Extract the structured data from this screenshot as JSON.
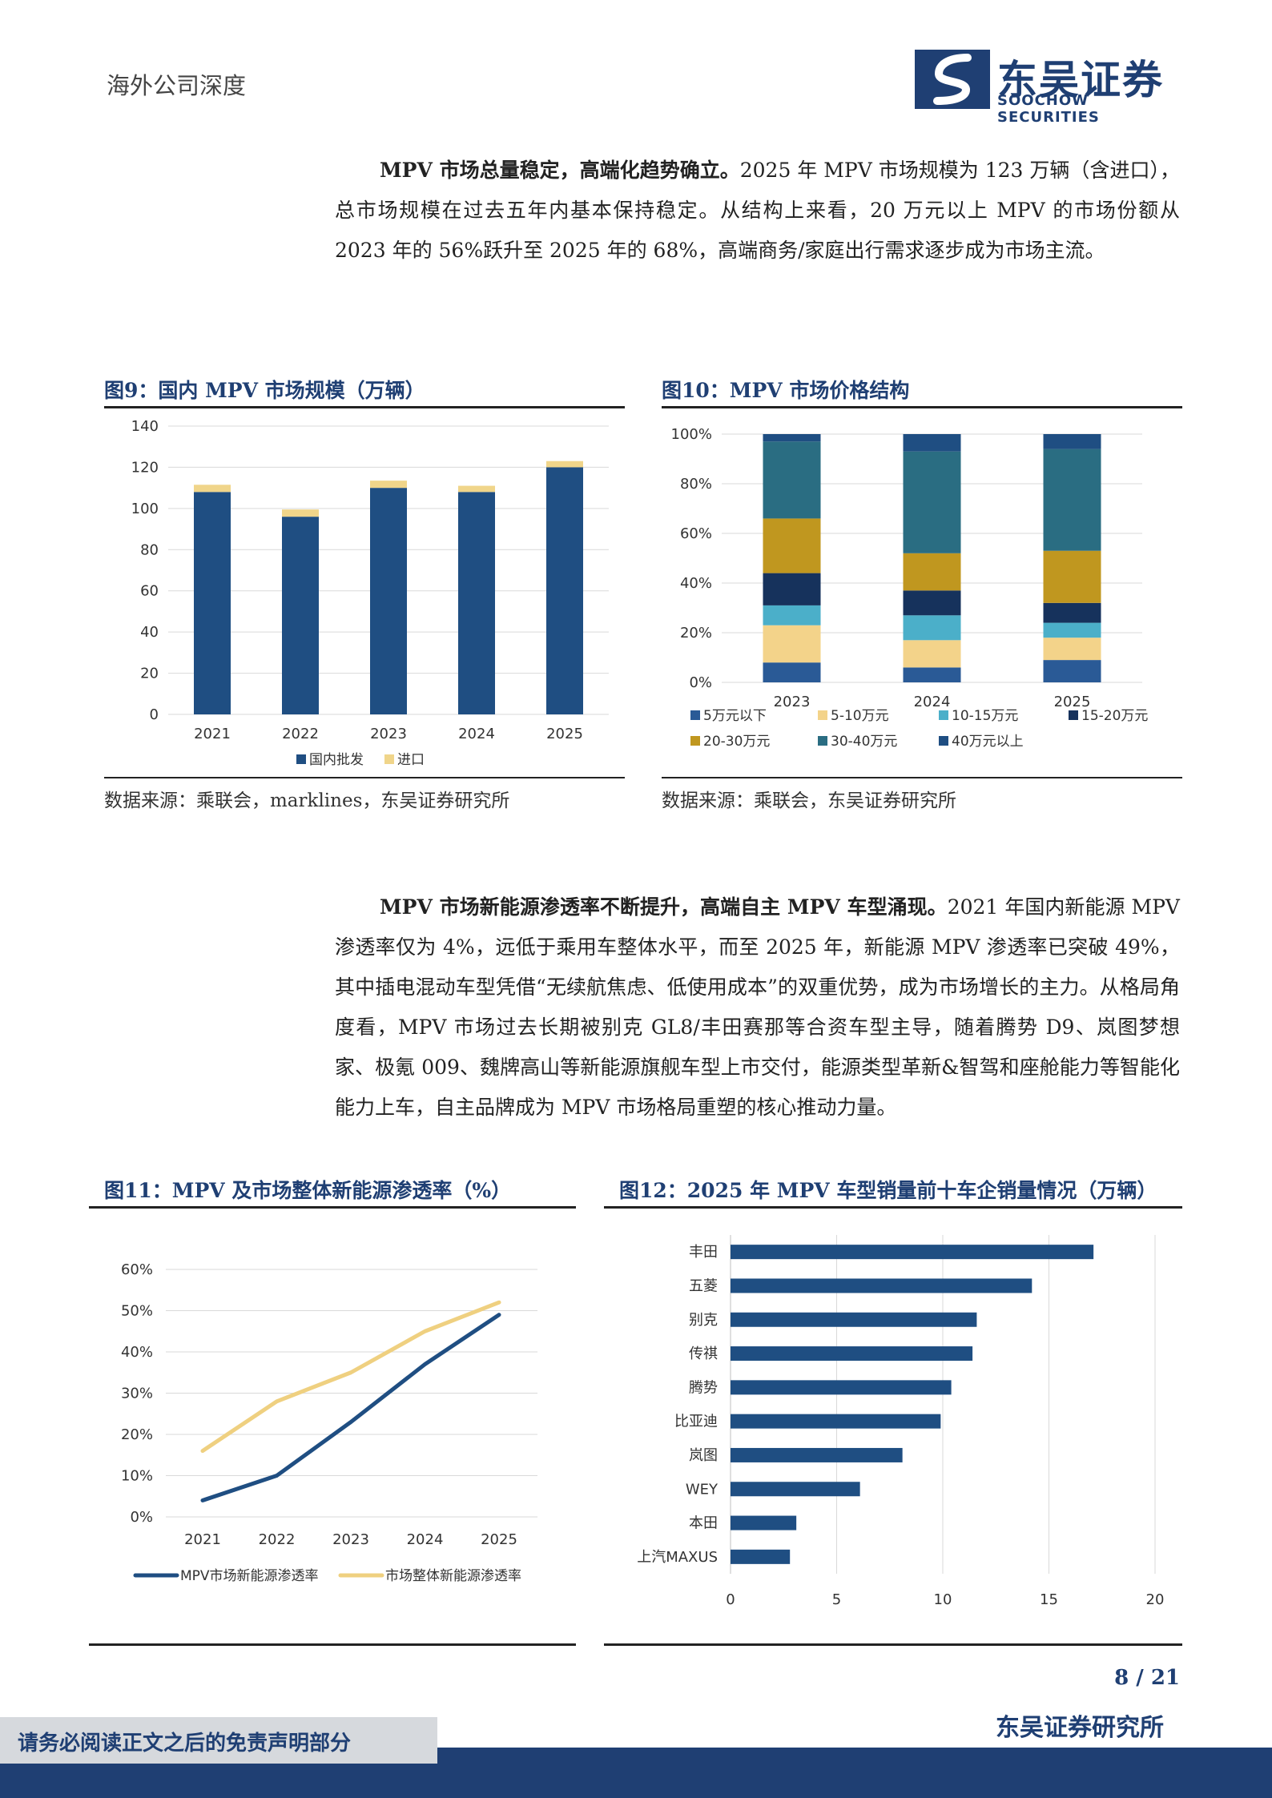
{
  "header": {
    "doc_type": "海外公司深度",
    "logo_cn": "东吴证券",
    "logo_en": "SOOCHOW SECURITIES"
  },
  "paragraph1": {
    "lead": "MPV 市场总量稳定，高端化趋势确立。",
    "body": "2025 年 MPV 市场规模为 123 万辆（含进口），总市场规模在过去五年内基本保持稳定。从结构上来看，20 万元以上 MPV 的市场份额从 2023 年的 56%跃升至 2025 年的 68%，高端商务/家庭出行需求逐步成为市场主流。"
  },
  "paragraph2": {
    "lead": "MPV 市场新能源渗透率不断提升，高端自主 MPV 车型涌现。",
    "body": "2021 年国内新能源 MPV 渗透率仅为 4%，远低于乘用车整体水平，而至 2025 年，新能源 MPV 渗透率已突破 49%，其中插电混动车型凭借“无续航焦虑、低使用成本”的双重优势，成为市场增长的主力。从格局角度看，MPV 市场过去长期被别克 GL8/丰田赛那等合资车型主导，随着腾势 D9、岚图梦想家、极氪 009、魏牌高山等新能源旗舰车型上市交付，能源类型革新&智驾和座舱能力等智能化能力上车，自主品牌成为 MPV 市场格局重塑的核心推动力量。"
  },
  "figures": {
    "fig9": {
      "title": "图9：国内 MPV 市场规模（万辆）",
      "source": "数据来源：乘联会，marklines，东吴证券研究所"
    },
    "fig10": {
      "title": "图10：MPV 市场价格结构",
      "source": "数据来源：乘联会，东吴证券研究所"
    },
    "fig11": {
      "title": "图11：MPV 及市场整体新能源渗透率（%）"
    },
    "fig12": {
      "title": "图12：2025 年 MPV 车型销量前十车企销量情况（万辆）"
    }
  },
  "chart_data": [
    {
      "type": "bar",
      "stacked": true,
      "categories": [
        "2021",
        "2022",
        "2023",
        "2024",
        "2025"
      ],
      "series": [
        {
          "name": "国内批发",
          "values": [
            108,
            96,
            110,
            108,
            120
          ],
          "color": "#1f4e82"
        },
        {
          "name": "进口",
          "values": [
            3.5,
            3.5,
            3.5,
            3,
            3
          ],
          "color": "#f0d58a"
        }
      ],
      "ylim": [
        0,
        140
      ],
      "yticks": [
        "0",
        "20",
        "40",
        "60",
        "80",
        "100",
        "120",
        "140"
      ],
      "grid": true,
      "legend": "bottom"
    },
    {
      "type": "bar",
      "stacked": true,
      "percent": true,
      "categories": [
        "2023",
        "2024",
        "2025"
      ],
      "series": [
        {
          "name": "5万元以下",
          "values": [
            8,
            6,
            9
          ],
          "color": "#2a5a96"
        },
        {
          "name": "5-10万元",
          "values": [
            15,
            11,
            9
          ],
          "color": "#f3d38a"
        },
        {
          "name": "10-15万元",
          "values": [
            8,
            10,
            6
          ],
          "color": "#4bafc9"
        },
        {
          "name": "15-20万元",
          "values": [
            13,
            10,
            8
          ],
          "color": "#16325c"
        },
        {
          "name": "20-30万元",
          "values": [
            22,
            15,
            21
          ],
          "color": "#c0971f"
        },
        {
          "name": "30-40万元",
          "values": [
            31,
            41,
            41
          ],
          "color": "#2a6d82"
        },
        {
          "name": "40万元以上",
          "values": [
            3,
            7,
            6
          ],
          "color": "#1f4e82"
        }
      ],
      "ylim": [
        0,
        100
      ],
      "yticks": [
        "0%",
        "20%",
        "40%",
        "60%",
        "80%",
        "100%"
      ],
      "grid": true,
      "legend": "bottom"
    },
    {
      "type": "line",
      "categories": [
        "2021",
        "2022",
        "2023",
        "2024",
        "2025"
      ],
      "series": [
        {
          "name": "MPV市场新能源渗透率",
          "values": [
            4,
            10,
            23,
            37,
            49
          ],
          "color": "#1f4e82"
        },
        {
          "name": "市场整体新能源渗透率",
          "values": [
            16,
            28,
            35,
            45,
            52
          ],
          "color": "#efd080"
        }
      ],
      "ylim": [
        0,
        60
      ],
      "yticks": [
        "0%",
        "10%",
        "20%",
        "30%",
        "40%",
        "50%",
        "60%"
      ],
      "grid": true,
      "legend": "bottom"
    },
    {
      "type": "bar",
      "orientation": "horizontal",
      "categories": [
        "丰田",
        "五菱",
        "别克",
        "传祺",
        "腾势",
        "比亚迪",
        "岚图",
        "WEY",
        "本田",
        "上汽MAXUS"
      ],
      "values": [
        17.1,
        14.2,
        11.6,
        11.4,
        10.4,
        9.9,
        8.1,
        6.1,
        3.1,
        2.8
      ],
      "color": "#1f4e82",
      "xlim": [
        0,
        20
      ],
      "xticks": [
        "0",
        "5",
        "10",
        "15",
        "20"
      ],
      "grid": true
    }
  ],
  "footer": {
    "page_num": "8 / 21",
    "org": "东吴证券研究所",
    "disclaimer": "请务必阅读正文之后的免责声明部分"
  }
}
